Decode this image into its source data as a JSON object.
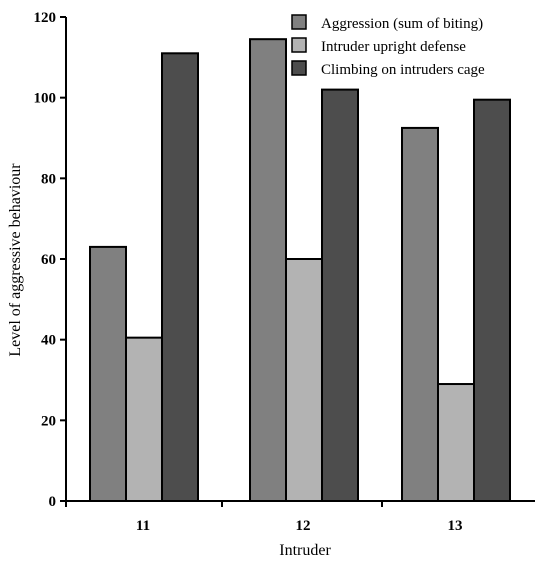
{
  "chart_data": {
    "type": "bar",
    "xlabel": "Intruder",
    "ylabel": "Level of aggressive behaviour",
    "ylim": [
      0,
      120
    ],
    "yticks": [
      0,
      20,
      40,
      60,
      80,
      100,
      120
    ],
    "categories": [
      "11",
      "12",
      "13"
    ],
    "legend_position": "top-right",
    "grid": false,
    "series": [
      {
        "name": "Aggression (sum of biting)",
        "color": "#808080",
        "values": [
          63,
          114.5,
          92.5
        ]
      },
      {
        "name": "Intruder upright defense",
        "color": "#b3b3b3",
        "values": [
          40.5,
          60,
          29
        ]
      },
      {
        "name": "Climbing on intruders cage",
        "color": "#4d4d4d",
        "values": [
          111,
          102,
          99.5
        ]
      }
    ]
  }
}
